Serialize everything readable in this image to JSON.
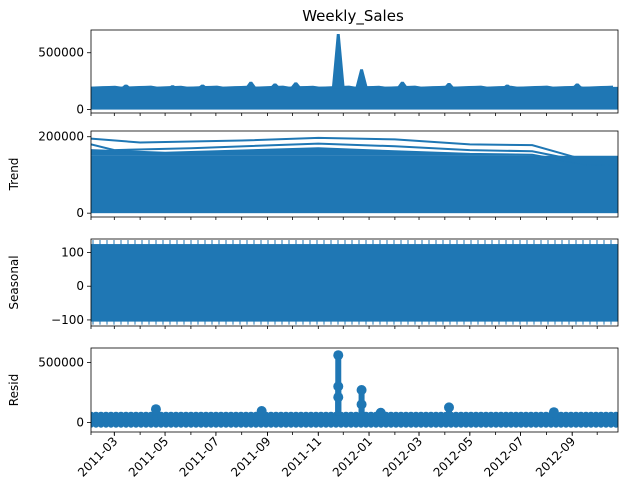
{
  "chart_data": {
    "type": "line",
    "title": "Weekly_Sales",
    "series_color": "#1f77b4",
    "x_tick_labels": [
      "2011-03",
      "2011-05",
      "2011-07",
      "2011-09",
      "2011-11",
      "2012-01",
      "2012-03",
      "2012-05",
      "2012-07",
      "2012-09"
    ],
    "xlim": [
      "2011-02-01",
      "2012-10-26"
    ],
    "panels": [
      {
        "name": "observed",
        "ylabel": "",
        "ylim": [
          -30000,
          700000
        ],
        "yticks": [
          0,
          500000
        ],
        "ytick_labels": [
          "0",
          "500000"
        ],
        "band": {
          "low": 0,
          "high": 200000
        },
        "peaks": [
          {
            "x": "2011-03-15",
            "y": 215000
          },
          {
            "x": "2011-05-10",
            "y": 210000
          },
          {
            "x": "2011-06-15",
            "y": 215000
          },
          {
            "x": "2011-08-12",
            "y": 240000
          },
          {
            "x": "2011-09-10",
            "y": 225000
          },
          {
            "x": "2011-10-05",
            "y": 235000
          },
          {
            "x": "2011-11-25",
            "y": 660000
          },
          {
            "x": "2011-12-23",
            "y": 350000
          },
          {
            "x": "2012-02-10",
            "y": 240000
          },
          {
            "x": "2012-04-06",
            "y": 230000
          },
          {
            "x": "2012-06-15",
            "y": 215000
          },
          {
            "x": "2012-09-07",
            "y": 225000
          }
        ]
      },
      {
        "name": "trend",
        "ylabel": "Trend",
        "ylim": [
          -10000,
          215000
        ],
        "yticks": [
          0,
          200000
        ],
        "ytick_labels": [
          "0",
          "200000"
        ],
        "band": {
          "low": 0,
          "high": 150000
        },
        "upper_curves": [
          [
            [
              "2011-02-01",
              195000
            ],
            [
              "2011-04-01",
              185000
            ],
            [
              "2011-08-01",
              190000
            ],
            [
              "2011-11-01",
              197000
            ],
            [
              "2012-02-01",
              193000
            ],
            [
              "2012-05-01",
              180000
            ],
            [
              "2012-07-15",
              178000
            ],
            [
              "2012-09-15",
              140000
            ],
            [
              "2012-10-26",
              138000
            ]
          ],
          [
            [
              "2011-02-01",
              180000
            ],
            [
              "2011-03-01",
              165000
            ],
            [
              "2011-06-01",
              170000
            ],
            [
              "2011-11-01",
              182000
            ],
            [
              "2012-02-01",
              175000
            ],
            [
              "2012-05-01",
              165000
            ],
            [
              "2012-07-15",
              162000
            ],
            [
              "2012-09-15",
              135000
            ],
            [
              "2012-10-26",
              132000
            ]
          ],
          [
            [
              "2011-02-01",
              165000
            ],
            [
              "2011-05-01",
              158000
            ],
            [
              "2011-11-01",
              170000
            ],
            [
              "2012-02-01",
              162000
            ],
            [
              "2012-05-01",
              155000
            ],
            [
              "2012-07-15",
              153000
            ],
            [
              "2012-09-15",
              128000
            ],
            [
              "2012-10-26",
              127000
            ]
          ]
        ]
      },
      {
        "name": "seasonal",
        "ylabel": "Seasonal",
        "ylim": [
          -118,
          140
        ],
        "yticks": [
          -100,
          0,
          100
        ],
        "ytick_labels": [
          "−100",
          "0",
          "100"
        ],
        "band": {
          "low": -105,
          "high": 125
        }
      },
      {
        "name": "resid",
        "ylabel": "Resid",
        "ylim": [
          -80000,
          620000
        ],
        "yticks": [
          0,
          500000
        ],
        "ytick_labels": [
          "0",
          "500000"
        ],
        "band": {
          "low": -20000,
          "high": 55000
        },
        "points": [
          {
            "x": "2011-04-20",
            "y": 110000
          },
          {
            "x": "2011-08-25",
            "y": 95000
          },
          {
            "x": "2011-11-25",
            "y": 560000
          },
          {
            "x": "2011-11-25",
            "y": 300000
          },
          {
            "x": "2011-11-25",
            "y": 210000
          },
          {
            "x": "2011-12-23",
            "y": 270000
          },
          {
            "x": "2011-12-23",
            "y": 150000
          },
          {
            "x": "2012-04-06",
            "y": 125000
          },
          {
            "x": "2012-01-15",
            "y": 80000
          },
          {
            "x": "2012-08-10",
            "y": 85000
          }
        ]
      }
    ]
  }
}
